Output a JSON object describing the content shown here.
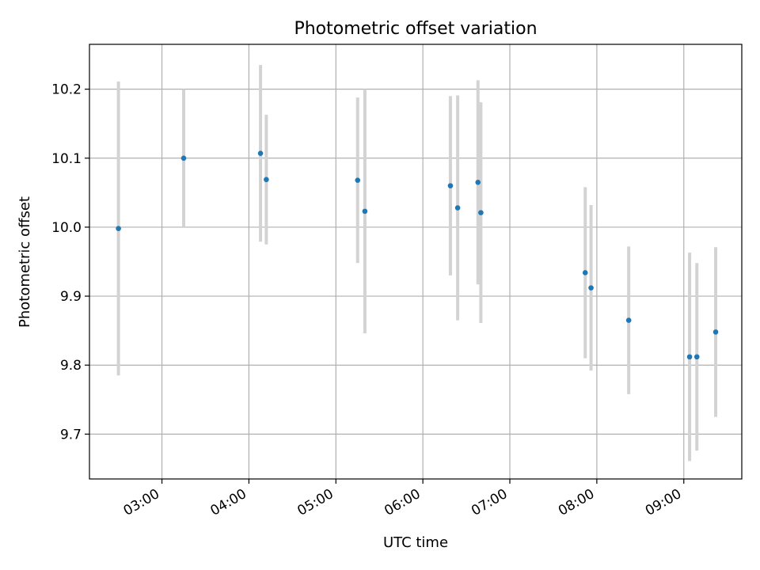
{
  "chart_data": {
    "type": "scatter",
    "title": "Photometric offset variation",
    "xlabel": "UTC time",
    "ylabel": "Photometric offset",
    "grid": true,
    "xlim": [
      "02:10",
      "09:40"
    ],
    "ylim": [
      9.635,
      10.265
    ],
    "xticks": [
      "03:00",
      "04:00",
      "05:00",
      "06:00",
      "07:00",
      "08:00",
      "09:00"
    ],
    "yticks": [
      9.7,
      9.8,
      9.9,
      10.0,
      10.1,
      10.2
    ],
    "colors": {
      "points": "#1f77b4",
      "error_bars": "#d3d3d3",
      "grid": "#b0b0b0"
    },
    "points": [
      {
        "x": "02:30",
        "y": 9.998,
        "err": 0.213
      },
      {
        "x": "03:15",
        "y": 10.1,
        "err": 0.1
      },
      {
        "x": "04:08",
        "y": 10.107,
        "err": 0.128
      },
      {
        "x": "04:12",
        "y": 10.069,
        "err": 0.094
      },
      {
        "x": "05:15",
        "y": 10.068,
        "err": 0.12
      },
      {
        "x": "05:20",
        "y": 10.023,
        "err": 0.177
      },
      {
        "x": "06:19",
        "y": 10.06,
        "err": 0.13
      },
      {
        "x": "06:24",
        "y": 10.028,
        "err": 0.163
      },
      {
        "x": "06:38",
        "y": 10.065,
        "err": 0.148
      },
      {
        "x": "06:40",
        "y": 10.021,
        "err": 0.16
      },
      {
        "x": "07:52",
        "y": 9.934,
        "err": 0.124
      },
      {
        "x": "07:56",
        "y": 9.912,
        "err": 0.12
      },
      {
        "x": "08:22",
        "y": 9.865,
        "err": 0.107
      },
      {
        "x": "09:04",
        "y": 9.812,
        "err": 0.151
      },
      {
        "x": "09:09",
        "y": 9.812,
        "err": 0.136
      },
      {
        "x": "09:22",
        "y": 9.848,
        "err": 0.123
      }
    ]
  }
}
